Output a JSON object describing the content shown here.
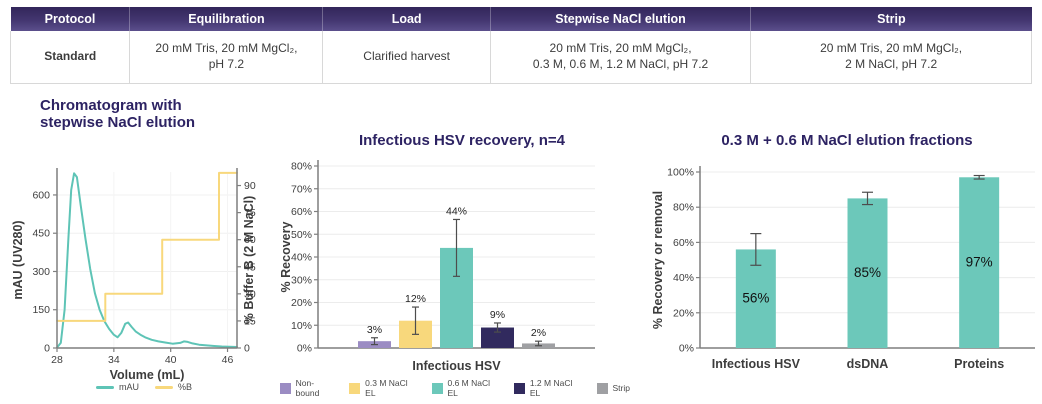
{
  "table": {
    "columns": [
      "Protocol",
      "Equilibration",
      "Load",
      "Stepwise NaCl elution",
      "Strip"
    ],
    "rows": [
      [
        "Standard",
        "20 mM Tris, 20 mM MgCl₂,\npH 7.2",
        "Clarified harvest",
        "20 mM Tris, 20 mM MgCl₂,\n0.3 M, 0.6 M, 1.2 M NaCl, pH 7.2",
        "20 mM Tris, 20 mM MgCl₂,\n2 M NaCl, pH 7.2"
      ]
    ]
  },
  "colors": {
    "header_purple_dark": "#32265a",
    "header_purple_light": "#5b4f8c",
    "title_navy": "#2d2363",
    "teal": "#68c8ba",
    "yellow": "#f8d87c",
    "purple_bar": "#9b8cc3",
    "navy_bar": "#312a5e",
    "gray_bar": "#9fa0a3",
    "axis_gray": "#7f7f7f",
    "error_gray": "#4d4d4d"
  },
  "chart_data": [
    {
      "type": "line",
      "title": "Chromatogram with\nstepwise NaCl elution",
      "xlabel": "Volume (mL)",
      "ylabel_left": "mAU (UV280)",
      "ylabel_right": "% Buffer B (2 M NaCl)",
      "xlim": [
        28,
        47
      ],
      "x_ticks": [
        28,
        34,
        40,
        46
      ],
      "ylim_left": [
        0,
        690
      ],
      "yticks_left": [
        0,
        150,
        300,
        450,
        600
      ],
      "ylim_right": [
        0,
        97.5
      ],
      "yticks_right": [
        0,
        15,
        30,
        45,
        60,
        75,
        90
      ],
      "grid": true,
      "legend_position": "bottom",
      "series": [
        {
          "name": "mAU",
          "axis": "left",
          "color": "#5ec4b6",
          "points": [
            [
              28,
              2
            ],
            [
              28.4,
              20
            ],
            [
              28.8,
              150
            ],
            [
              29.2,
              430
            ],
            [
              29.5,
              620
            ],
            [
              29.8,
              685
            ],
            [
              30.1,
              670
            ],
            [
              30.5,
              560
            ],
            [
              31,
              430
            ],
            [
              31.5,
              310
            ],
            [
              32,
              215
            ],
            [
              32.5,
              150
            ],
            [
              33,
              105
            ],
            [
              33.5,
              75
            ],
            [
              34,
              52
            ],
            [
              34.4,
              42
            ],
            [
              34.8,
              60
            ],
            [
              35.2,
              95
            ],
            [
              35.5,
              100
            ],
            [
              35.9,
              82
            ],
            [
              36.3,
              65
            ],
            [
              36.8,
              52
            ],
            [
              37.3,
              42
            ],
            [
              38,
              32
            ],
            [
              38.7,
              26
            ],
            [
              39.5,
              21
            ],
            [
              40.2,
              17
            ],
            [
              41,
              20
            ],
            [
              41.4,
              26
            ],
            [
              41.8,
              24
            ],
            [
              42.3,
              18
            ],
            [
              43,
              13
            ],
            [
              43.8,
              10
            ],
            [
              44.6,
              8
            ],
            [
              45.4,
              6
            ],
            [
              46.2,
              5
            ],
            [
              47,
              4
            ]
          ]
        },
        {
          "name": "%B",
          "axis": "right",
          "color": "#f8d87c",
          "points": [
            [
              28,
              15
            ],
            [
              33.1,
              15
            ],
            [
              33.1,
              30
            ],
            [
              39.1,
              30
            ],
            [
              39.1,
              60
            ],
            [
              45.1,
              60
            ],
            [
              45.1,
              97
            ],
            [
              47,
              97
            ]
          ]
        }
      ]
    },
    {
      "type": "bar",
      "title": "Infectious HSV recovery, n=4",
      "xlabel": "Infectious HSV",
      "ylabel": "% Recovery",
      "ylim": [
        0,
        80
      ],
      "ytick_step": 10,
      "grid": true,
      "legend_position": "bottom",
      "series": [
        {
          "name": "Non-bound",
          "value": 3,
          "error": 1.5,
          "label": "3%",
          "color": "#9b8cc3"
        },
        {
          "name": "0.3 M NaCl EL",
          "value": 12,
          "error": 6,
          "label": "12%",
          "color": "#f8d87c"
        },
        {
          "name": "0.6 M NaCl EL",
          "value": 44,
          "error": 12.5,
          "label": "44%",
          "color": "#6cc8ba"
        },
        {
          "name": "1.2 M NaCl EL",
          "value": 9,
          "error": 2,
          "label": "9%",
          "color": "#312a5e"
        },
        {
          "name": "Strip",
          "value": 2,
          "error": 1,
          "label": "2%",
          "color": "#9fa0a3"
        }
      ]
    },
    {
      "type": "bar",
      "title": "0.3 M + 0.6 M NaCl elution fractions",
      "ylabel": "% Recovery or removal",
      "categories": [
        "Infectious HSV",
        "dsDNA",
        "Proteins"
      ],
      "values": [
        56,
        85,
        97
      ],
      "errors": [
        9,
        3.5,
        1
      ],
      "labels": [
        "56%",
        "85%",
        "97%"
      ],
      "bar_color": "#6cc8ba",
      "ylim": [
        0,
        100
      ],
      "ytick_step": 20,
      "grid": true
    }
  ]
}
